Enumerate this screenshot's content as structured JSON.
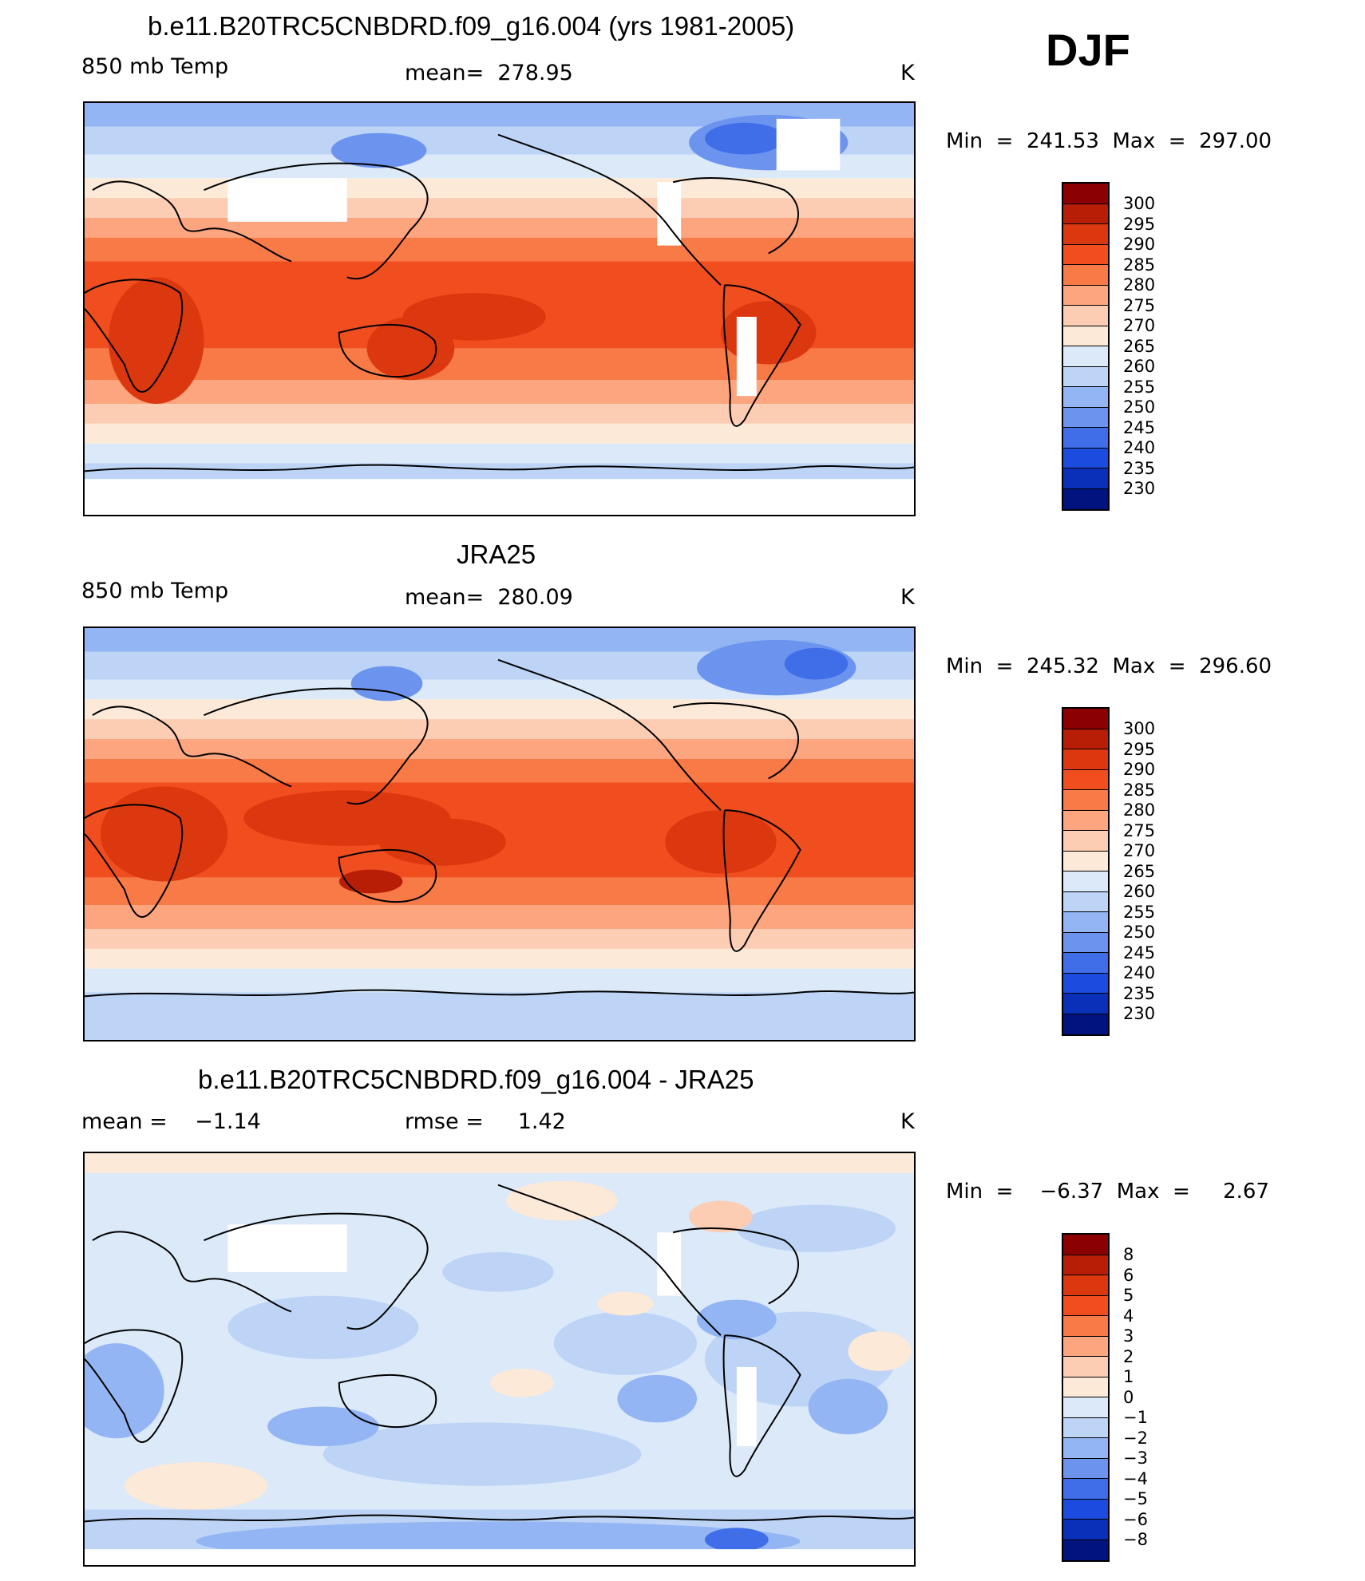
{
  "season": "DJF",
  "panels": [
    {
      "id": "model",
      "title": "b.e11.B20TRC5CNBDRD.f09_g16.004 (yrs 1981-2005)",
      "left_label": "850 mb Temp",
      "center_label": "mean=  278.95",
      "units": "K",
      "minmax": "Min  =  241.53  Max  =  297.00",
      "colorbar_labels": [
        "300",
        "295",
        "290",
        "285",
        "280",
        "275",
        "270",
        "265",
        "260",
        "255",
        "250",
        "245",
        "240",
        "235",
        "230"
      ],
      "colorbar_colors": [
        "#8b0000",
        "#b81d05",
        "#dc3810",
        "#f04e1e",
        "#f87a46",
        "#fca57e",
        "#fccdb2",
        "#fde9d8",
        "#dbe9f9",
        "#bdd4f6",
        "#93b5f3",
        "#6c94ef",
        "#3f6ee8",
        "#1c4be0",
        "#0a2fb8",
        "#00137f"
      ]
    },
    {
      "id": "obs",
      "title": "JRA25",
      "left_label": "850 mb Temp",
      "center_label": "mean=  280.09",
      "units": "K",
      "minmax": "Min  =  245.32  Max  =  296.60",
      "colorbar_labels": [
        "300",
        "295",
        "290",
        "285",
        "280",
        "275",
        "270",
        "265",
        "260",
        "255",
        "250",
        "245",
        "240",
        "235",
        "230"
      ],
      "colorbar_colors": [
        "#8b0000",
        "#b81d05",
        "#dc3810",
        "#f04e1e",
        "#f87a46",
        "#fca57e",
        "#fccdb2",
        "#fde9d8",
        "#dbe9f9",
        "#bdd4f6",
        "#93b5f3",
        "#6c94ef",
        "#3f6ee8",
        "#1c4be0",
        "#0a2fb8",
        "#00137f"
      ]
    },
    {
      "id": "diff",
      "title": "b.e11.B20TRC5CNBDRD.f09_g16.004 - JRA25",
      "left_label": "mean =    −1.14",
      "center_label": "rmse =     1.42",
      "units": "K",
      "minmax": "Min  =    −6.37  Max  =     2.67",
      "colorbar_labels": [
        "8",
        "6",
        "5",
        "4",
        "3",
        "2",
        "1",
        "0",
        "−1",
        "−2",
        "−3",
        "−4",
        "−5",
        "−6",
        "−8"
      ],
      "colorbar_colors": [
        "#8b0000",
        "#b81d05",
        "#dc3810",
        "#f04e1e",
        "#f87a46",
        "#fca57e",
        "#fccdb2",
        "#fde9d8",
        "#dbe9f9",
        "#bdd4f6",
        "#93b5f3",
        "#6c94ef",
        "#3f6ee8",
        "#1c4be0",
        "#0a2fb8",
        "#00137f"
      ]
    }
  ]
}
